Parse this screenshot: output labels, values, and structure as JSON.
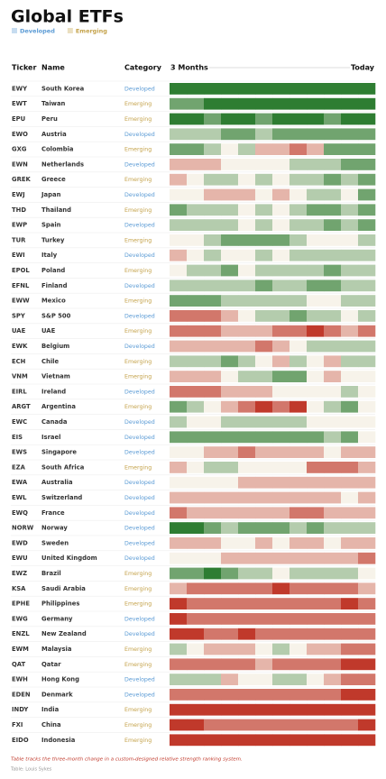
{
  "title": "Global ETFs",
  "legend": [
    {
      "label": "Developed",
      "color": "#5b9bd5"
    },
    {
      "label": "Emerging",
      "color": "#c4a24a"
    }
  ],
  "header": {
    "ticker": "Ticker",
    "name": "Name",
    "category": "Category",
    "start": "3 Months",
    "end": "Today"
  },
  "scale": {
    "min": -3,
    "max": 3,
    "low_color": "#c0392b",
    "mid_color": "#f7f3ea",
    "high_color": "#2e7d32"
  },
  "rows": [
    {
      "ticker": "EWY",
      "name": "South Korea",
      "category": "Developed",
      "values": [
        3,
        3,
        3,
        3,
        3,
        3,
        3,
        3,
        3,
        3,
        3,
        3
      ]
    },
    {
      "ticker": "EWT",
      "name": "Taiwan",
      "category": "Emerging",
      "values": [
        2,
        2,
        3,
        3,
        3,
        3,
        3,
        3,
        3,
        3,
        3,
        3
      ]
    },
    {
      "ticker": "EPU",
      "name": "Peru",
      "category": "Emerging",
      "values": [
        3,
        3,
        2,
        3,
        3,
        2,
        3,
        3,
        3,
        2,
        3,
        3
      ]
    },
    {
      "ticker": "EWO",
      "name": "Austria",
      "category": "Developed",
      "values": [
        1,
        1,
        1,
        2,
        2,
        1,
        2,
        2,
        2,
        2,
        2,
        2
      ]
    },
    {
      "ticker": "GXG",
      "name": "Colombia",
      "category": "Emerging",
      "values": [
        2,
        2,
        1,
        0,
        1,
        -1,
        -1,
        -2,
        -1,
        2,
        2,
        2
      ]
    },
    {
      "ticker": "EWN",
      "name": "Netherlands",
      "category": "Developed",
      "values": [
        -1,
        -1,
        -1,
        0,
        0,
        0,
        0,
        1,
        1,
        1,
        2,
        2
      ]
    },
    {
      "ticker": "GREK",
      "name": "Greece",
      "category": "Emerging",
      "values": [
        -1,
        0,
        1,
        1,
        0,
        1,
        0,
        1,
        1,
        2,
        1,
        2
      ]
    },
    {
      "ticker": "EWJ",
      "name": "Japan",
      "category": "Developed",
      "values": [
        0,
        0,
        -1,
        -1,
        -1,
        0,
        -1,
        0,
        1,
        1,
        0,
        2
      ]
    },
    {
      "ticker": "THD",
      "name": "Thailand",
      "category": "Emerging",
      "values": [
        2,
        1,
        1,
        1,
        0,
        1,
        0,
        1,
        2,
        2,
        1,
        2
      ]
    },
    {
      "ticker": "EWP",
      "name": "Spain",
      "category": "Developed",
      "values": [
        1,
        1,
        1,
        1,
        0,
        1,
        0,
        1,
        1,
        2,
        1,
        2
      ]
    },
    {
      "ticker": "TUR",
      "name": "Turkey",
      "category": "Emerging",
      "values": [
        0,
        0,
        1,
        2,
        2,
        2,
        2,
        1,
        0,
        0,
        0,
        1
      ]
    },
    {
      "ticker": "EWI",
      "name": "Italy",
      "category": "Developed",
      "values": [
        -1,
        0,
        1,
        0,
        0,
        1,
        0,
        1,
        1,
        1,
        1,
        1
      ]
    },
    {
      "ticker": "EPOL",
      "name": "Poland",
      "category": "Emerging",
      "values": [
        0,
        1,
        1,
        2,
        0,
        1,
        1,
        1,
        1,
        2,
        1,
        1
      ]
    },
    {
      "ticker": "EFNL",
      "name": "Finland",
      "category": "Developed",
      "values": [
        1,
        1,
        1,
        1,
        1,
        2,
        1,
        1,
        2,
        2,
        1,
        1
      ]
    },
    {
      "ticker": "EWW",
      "name": "Mexico",
      "category": "Emerging",
      "values": [
        2,
        2,
        2,
        1,
        1,
        1,
        1,
        1,
        0,
        0,
        1,
        1
      ]
    },
    {
      "ticker": "SPY",
      "name": "S&P 500",
      "category": "Developed",
      "values": [
        -2,
        -2,
        -2,
        -1,
        0,
        1,
        1,
        2,
        1,
        1,
        0,
        1
      ]
    },
    {
      "ticker": "UAE",
      "name": "UAE",
      "category": "Emerging",
      "values": [
        -2,
        -2,
        -2,
        -1,
        -1,
        -1,
        -2,
        -2,
        -3,
        -2,
        -1,
        -2
      ]
    },
    {
      "ticker": "EWK",
      "name": "Belgium",
      "category": "Developed",
      "values": [
        -1,
        -1,
        -1,
        -1,
        -1,
        -2,
        -1,
        0,
        1,
        1,
        1,
        1
      ]
    },
    {
      "ticker": "ECH",
      "name": "Chile",
      "category": "Emerging",
      "values": [
        1,
        1,
        1,
        2,
        1,
        0,
        -1,
        1,
        0,
        -1,
        1,
        1
      ]
    },
    {
      "ticker": "VNM",
      "name": "Vietnam",
      "category": "Emerging",
      "values": [
        -1,
        -1,
        -1,
        0,
        1,
        1,
        2,
        2,
        0,
        -1,
        0,
        0
      ]
    },
    {
      "ticker": "EIRL",
      "name": "Ireland",
      "category": "Developed",
      "values": [
        -2,
        -2,
        -2,
        -1,
        -1,
        -1,
        0,
        0,
        0,
        0,
        1,
        0
      ]
    },
    {
      "ticker": "ARGT",
      "name": "Argentina",
      "category": "Emerging",
      "values": [
        2,
        1,
        0,
        -1,
        -2,
        -3,
        -2,
        -3,
        0,
        1,
        2,
        0
      ]
    },
    {
      "ticker": "EWC",
      "name": "Canada",
      "category": "Developed",
      "values": [
        1,
        0,
        0,
        1,
        1,
        1,
        1,
        1,
        0,
        0,
        0,
        0
      ]
    },
    {
      "ticker": "EIS",
      "name": "Israel",
      "category": "Developed",
      "values": [
        2,
        2,
        2,
        2,
        2,
        2,
        2,
        2,
        2,
        1,
        2,
        0
      ]
    },
    {
      "ticker": "EWS",
      "name": "Singapore",
      "category": "Developed",
      "values": [
        0,
        0,
        -1,
        -1,
        -2,
        -1,
        -1,
        -1,
        -1,
        0,
        -1,
        -1
      ]
    },
    {
      "ticker": "EZA",
      "name": "South Africa",
      "category": "Emerging",
      "values": [
        -1,
        0,
        1,
        1,
        0,
        0,
        0,
        0,
        -2,
        -2,
        -2,
        -1
      ]
    },
    {
      "ticker": "EWA",
      "name": "Australia",
      "category": "Developed",
      "values": [
        0,
        0,
        0,
        0,
        -1,
        -1,
        -1,
        -1,
        -1,
        -1,
        -1,
        -1
      ]
    },
    {
      "ticker": "EWL",
      "name": "Switzerland",
      "category": "Developed",
      "values": [
        -1,
        -1,
        -1,
        -1,
        -1,
        -1,
        -1,
        -1,
        -1,
        -1,
        0,
        -1
      ]
    },
    {
      "ticker": "EWQ",
      "name": "France",
      "category": "Developed",
      "values": [
        -2,
        -1,
        -1,
        -1,
        -1,
        -1,
        -1,
        -2,
        -2,
        -1,
        -1,
        -1
      ]
    },
    {
      "ticker": "NORW",
      "name": "Norway",
      "category": "Developed",
      "values": [
        3,
        3,
        2,
        1,
        2,
        2,
        2,
        1,
        2,
        1,
        1,
        1
      ]
    },
    {
      "ticker": "EWD",
      "name": "Sweden",
      "category": "Developed",
      "values": [
        -1,
        -1,
        -1,
        0,
        0,
        -1,
        0,
        -1,
        -1,
        0,
        -1,
        -1
      ]
    },
    {
      "ticker": "EWU",
      "name": "United Kingdom",
      "category": "Developed",
      "values": [
        0,
        0,
        0,
        -1,
        -1,
        -1,
        -1,
        -1,
        -1,
        -1,
        -1,
        -2
      ]
    },
    {
      "ticker": "EWZ",
      "name": "Brazil",
      "category": "Emerging",
      "values": [
        2,
        2,
        3,
        2,
        1,
        1,
        0,
        1,
        1,
        1,
        1,
        0
      ]
    },
    {
      "ticker": "KSA",
      "name": "Saudi Arabia",
      "category": "Emerging",
      "values": [
        -1,
        -2,
        -2,
        -2,
        -2,
        -2,
        -3,
        -2,
        -2,
        -2,
        -2,
        -1
      ]
    },
    {
      "ticker": "EPHE",
      "name": "Philippines",
      "category": "Emerging",
      "values": [
        -3,
        -2,
        -2,
        -2,
        -2,
        -2,
        -2,
        -2,
        -2,
        -2,
        -3,
        -2
      ]
    },
    {
      "ticker": "EWG",
      "name": "Germany",
      "category": "Developed",
      "values": [
        -3,
        -2,
        -2,
        -2,
        -2,
        -2,
        -2,
        -2,
        -2,
        -2,
        -2,
        -2
      ]
    },
    {
      "ticker": "ENZL",
      "name": "New Zealand",
      "category": "Developed",
      "values": [
        -3,
        -3,
        -2,
        -2,
        -3,
        -2,
        -2,
        -2,
        -2,
        -2,
        -2,
        -2
      ]
    },
    {
      "ticker": "EWM",
      "name": "Malaysia",
      "category": "Emerging",
      "values": [
        1,
        0,
        -1,
        -1,
        -1,
        0,
        1,
        0,
        -1,
        -1,
        -2,
        -2
      ]
    },
    {
      "ticker": "QAT",
      "name": "Qatar",
      "category": "Emerging",
      "values": [
        -2,
        -2,
        -2,
        -2,
        -2,
        -1,
        -2,
        -2,
        -2,
        -2,
        -3,
        -3
      ]
    },
    {
      "ticker": "EWH",
      "name": "Hong Kong",
      "category": "Developed",
      "values": [
        1,
        1,
        1,
        -1,
        0,
        0,
        1,
        1,
        0,
        -1,
        -2,
        -2
      ]
    },
    {
      "ticker": "EDEN",
      "name": "Denmark",
      "category": "Developed",
      "values": [
        -2,
        -2,
        -2,
        -2,
        -2,
        -2,
        -2,
        -2,
        -2,
        -2,
        -3,
        -3
      ]
    },
    {
      "ticker": "INDY",
      "name": "India",
      "category": "Emerging",
      "values": [
        -3,
        -3,
        -3,
        -3,
        -3,
        -3,
        -3,
        -3,
        -3,
        -3,
        -3,
        -3
      ]
    },
    {
      "ticker": "FXI",
      "name": "China",
      "category": "Emerging",
      "values": [
        -3,
        -3,
        -2,
        -2,
        -2,
        -2,
        -2,
        -2,
        -2,
        -2,
        -2,
        -3
      ]
    },
    {
      "ticker": "EIDO",
      "name": "Indonesia",
      "category": "Emerging",
      "values": [
        -3,
        -3,
        -3,
        -3,
        -3,
        -3,
        -3,
        -3,
        -3,
        -3,
        -3,
        -3
      ]
    }
  ],
  "note": "Table tracks the three-month change in a custom-designed relative strength ranking system.",
  "credit": "Table: Louis Sykes"
}
